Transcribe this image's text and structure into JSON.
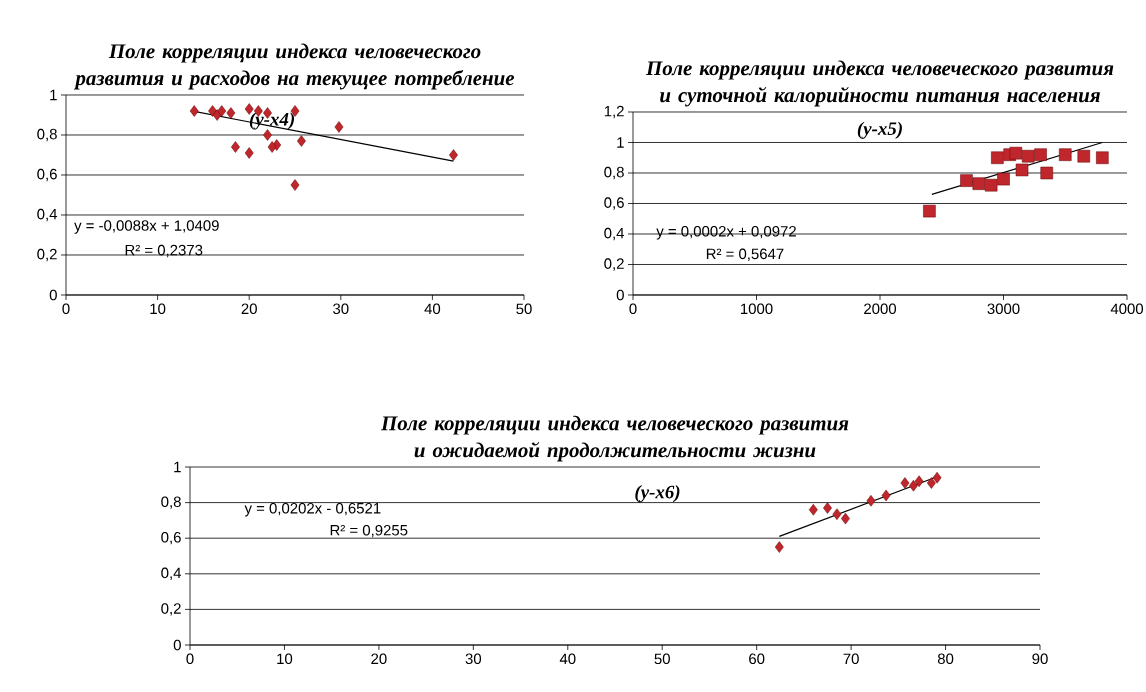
{
  "chart_data": [
    {
      "type": "scatter",
      "title": "Поле корреляции индекса человеческого развития и расходов на текущее потребление",
      "subtitle": "(у-х4)",
      "xlim": [
        0,
        50
      ],
      "ylim": [
        0,
        1
      ],
      "xticks": [
        0,
        10,
        20,
        30,
        40,
        50
      ],
      "yticks": [
        0,
        {
          "value": 0.2,
          "label": "0,2"
        },
        {
          "value": 0.4,
          "label": "0,4"
        },
        {
          "value": 0.6,
          "label": "0,6"
        },
        {
          "value": 0.8,
          "label": "0,8"
        },
        1
      ],
      "grid": "y",
      "annotations": [
        "y = -0,0088x + 1,0409",
        "R² = 0,2373"
      ],
      "series": [
        {
          "color": "#c0272d",
          "marker": "diamond",
          "x": [
            14,
            16,
            16.5,
            17,
            18,
            20,
            21,
            22,
            25,
            29.8,
            42.3,
            18.5,
            20,
            22,
            23,
            22.5,
            25.7,
            25
          ],
          "values": [
            0.92,
            0.92,
            0.9,
            0.92,
            0.91,
            0.93,
            0.92,
            0.91,
            0.92,
            0.84,
            0.7,
            0.74,
            0.71,
            0.8,
            0.75,
            0.74,
            0.77,
            0.55
          ]
        },
        {
          "type": "line",
          "color": "#000000",
          "marker": "none",
          "x": [
            14,
            42.3
          ],
          "values": [
            0.918,
            0.669
          ]
        }
      ]
    },
    {
      "type": "scatter",
      "title": "Поле корреляции индекса человеческого развития и суточной калорийности питания населения",
      "subtitle": "(у-х5)",
      "xlim": [
        0,
        4000
      ],
      "ylim": [
        0,
        1.2
      ],
      "xticks": [
        0,
        1000,
        2000,
        3000,
        4000
      ],
      "yticks": [
        0,
        {
          "value": 0.2,
          "label": "0,2"
        },
        {
          "value": 0.4,
          "label": "0,4"
        },
        {
          "value": 0.6,
          "label": "0,6"
        },
        {
          "value": 0.8,
          "label": "0,8"
        },
        1,
        {
          "value": 1.2,
          "label": "1,2"
        }
      ],
      "grid": "y",
      "annotations": [
        "y = 0,0002x + 0,0972",
        "R² = 0,5647"
      ],
      "series": [
        {
          "color": "#c0272d",
          "marker": "square",
          "x": [
            2400,
            2700,
            2800,
            2900,
            3000,
            2950,
            3050,
            3100,
            3200,
            3300,
            3350,
            3500,
            3650,
            3800,
            3150
          ],
          "values": [
            0.55,
            0.75,
            0.73,
            0.72,
            0.76,
            0.9,
            0.92,
            0.93,
            0.91,
            0.92,
            0.8,
            0.92,
            0.91,
            0.9,
            0.82
          ]
        },
        {
          "type": "line",
          "color": "#000000",
          "marker": "none",
          "x": [
            2420,
            3800
          ],
          "values": [
            0.66,
            1.0
          ]
        }
      ]
    },
    {
      "type": "scatter",
      "title": "Поле корреляции индекса человеческого развития и ожидаемой продолжительности жизни",
      "subtitle": "(у-х6)",
      "xlim": [
        0,
        90
      ],
      "ylim": [
        0,
        1
      ],
      "xticks": [
        0,
        10,
        20,
        30,
        40,
        50,
        60,
        70,
        80,
        90
      ],
      "yticks": [
        0,
        {
          "value": 0.2,
          "label": "0,2"
        },
        {
          "value": 0.4,
          "label": "0,4"
        },
        {
          "value": 0.6,
          "label": "0,6"
        },
        {
          "value": 0.8,
          "label": "0,8"
        },
        1
      ],
      "grid": "y",
      "annotations": [
        "y = 0,0202x - 0,6521",
        "R² = 0,9255"
      ],
      "series": [
        {
          "color": "#c0272d",
          "marker": "diamond",
          "x": [
            62.4,
            66,
            67.5,
            68.5,
            69.4,
            72.1,
            73.7,
            75.7,
            76.6,
            77.2,
            78.5,
            79.1
          ],
          "values": [
            0.55,
            0.76,
            0.77,
            0.735,
            0.71,
            0.81,
            0.84,
            0.91,
            0.895,
            0.92,
            0.91,
            0.94
          ]
        },
        {
          "type": "line",
          "color": "#000000",
          "marker": "none",
          "x": [
            62.4,
            79.1
          ],
          "values": [
            0.61,
            0.945
          ]
        }
      ]
    }
  ]
}
